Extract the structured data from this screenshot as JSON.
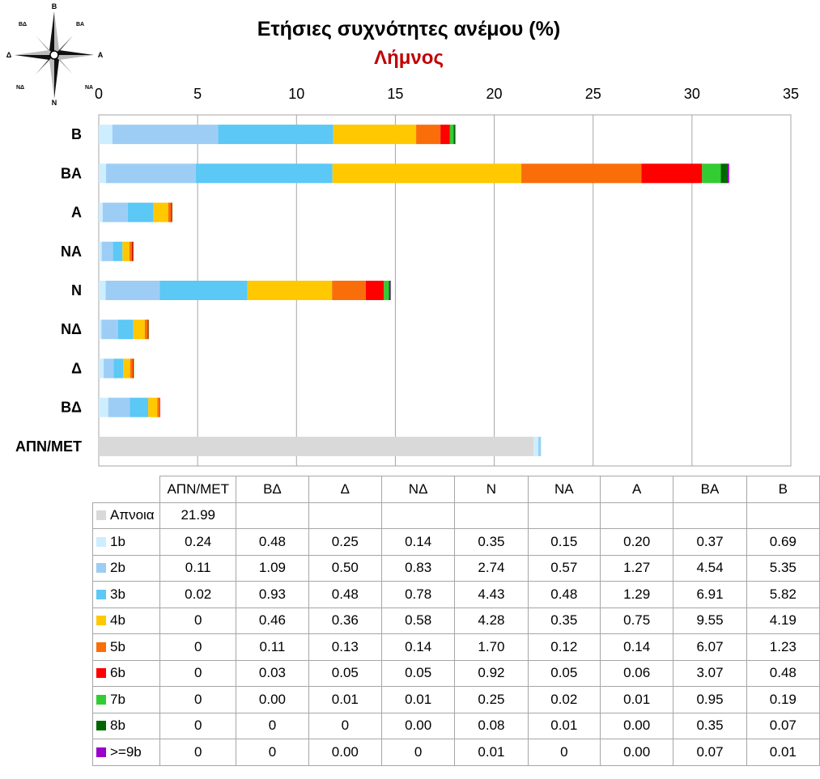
{
  "chart_data": {
    "type": "bar",
    "orientation": "horizontal",
    "stacked": true,
    "title": "Ετήσιες συχνότητες ανέμου (%)",
    "subtitle": "Λήμνος",
    "xlim": [
      0,
      35
    ],
    "x_ticks": [
      0,
      5,
      10,
      15,
      20,
      25,
      30,
      35
    ],
    "x_axis_position": "top",
    "grid": true,
    "legend_placement": "data-table-below",
    "categories": [
      "Β",
      "ΒΑ",
      "Α",
      "ΝΑ",
      "Ν",
      "ΝΔ",
      "Δ",
      "ΒΔ",
      "ΑΠΝ/ΜΕΤ"
    ],
    "table_columns": [
      "ΑΠΝ/ΜΕΤ",
      "ΒΔ",
      "Δ",
      "ΝΔ",
      "Ν",
      "ΝΑ",
      "Α",
      "ΒΑ",
      "Β"
    ],
    "series": [
      {
        "name": "Απνοια",
        "color": "#d9d9d9",
        "values": [
          null,
          null,
          null,
          null,
          null,
          null,
          null,
          null,
          21.99
        ],
        "labels": [
          "",
          "",
          "",
          "",
          "",
          "",
          "",
          "",
          "21.99"
        ]
      },
      {
        "name": "1b",
        "color": "#cceeff",
        "values": [
          0.69,
          0.37,
          0.2,
          0.15,
          0.35,
          0.14,
          0.25,
          0.48,
          0.24
        ],
        "labels": [
          "0.69",
          "0.37",
          "0.20",
          "0.15",
          "0.35",
          "0.14",
          "0.25",
          "0.48",
          "0.24"
        ]
      },
      {
        "name": "2b",
        "color": "#9dcdf5",
        "values": [
          5.35,
          4.54,
          1.27,
          0.57,
          2.74,
          0.83,
          0.5,
          1.09,
          0.11
        ],
        "labels": [
          "5.35",
          "4.54",
          "1.27",
          "0.57",
          "2.74",
          "0.83",
          "0.50",
          "1.09",
          "0.11"
        ]
      },
      {
        "name": "3b",
        "color": "#5bc8f5",
        "values": [
          5.82,
          6.91,
          1.29,
          0.48,
          4.43,
          0.78,
          0.48,
          0.93,
          0.02
        ],
        "labels": [
          "5.82",
          "6.91",
          "1.29",
          "0.48",
          "4.43",
          "0.78",
          "0.48",
          "0.93",
          "0.02"
        ]
      },
      {
        "name": "4b",
        "color": "#ffc800",
        "values": [
          4.19,
          9.55,
          0.75,
          0.35,
          4.28,
          0.58,
          0.36,
          0.46,
          0
        ],
        "labels": [
          "4.19",
          "9.55",
          "0.75",
          "0.35",
          "4.28",
          "0.58",
          "0.36",
          "0.46",
          "0"
        ]
      },
      {
        "name": "5b",
        "color": "#fa6e0a",
        "values": [
          1.23,
          6.07,
          0.14,
          0.12,
          1.7,
          0.14,
          0.13,
          0.11,
          0
        ],
        "labels": [
          "1.23",
          "6.07",
          "0.14",
          "0.12",
          "1.70",
          "0.14",
          "0.13",
          "0.11",
          "0"
        ]
      },
      {
        "name": "6b",
        "color": "#ff0000",
        "values": [
          0.48,
          3.07,
          0.06,
          0.05,
          0.92,
          0.05,
          0.05,
          0.03,
          0
        ],
        "labels": [
          "0.48",
          "3.07",
          "0.06",
          "0.05",
          "0.92",
          "0.05",
          "0.05",
          "0.03",
          "0"
        ]
      },
      {
        "name": "7b",
        "color": "#33cc33",
        "values": [
          0.19,
          0.95,
          0.01,
          0.02,
          0.25,
          0.01,
          0.01,
          0.0,
          0
        ],
        "labels": [
          "0.19",
          "0.95",
          "0.01",
          "0.02",
          "0.25",
          "0.01",
          "0.01",
          "0.00",
          "0"
        ]
      },
      {
        "name": "8b",
        "color": "#006600",
        "values": [
          0.07,
          0.35,
          0.0,
          0.01,
          0.08,
          0.0,
          0,
          0,
          0
        ],
        "labels": [
          "0.07",
          "0.35",
          "0.00",
          "0.01",
          "0.08",
          "0.00",
          "0",
          "0",
          "0"
        ]
      },
      {
        "name": ">=9b",
        "color": "#9900cc",
        "values": [
          0.01,
          0.07,
          0.0,
          0,
          0.01,
          0,
          0.0,
          0,
          0
        ],
        "labels": [
          "0.01",
          "0.07",
          "0.00",
          "0",
          "0.01",
          "0",
          "0.00",
          "0",
          "0"
        ]
      }
    ]
  },
  "compass": {
    "n": "Β",
    "ne": "ΒΑ",
    "e": "Α",
    "se": "ΝΑ",
    "s": "Ν",
    "sw": "ΝΔ",
    "w": "Δ",
    "nw": "ΒΔ"
  }
}
